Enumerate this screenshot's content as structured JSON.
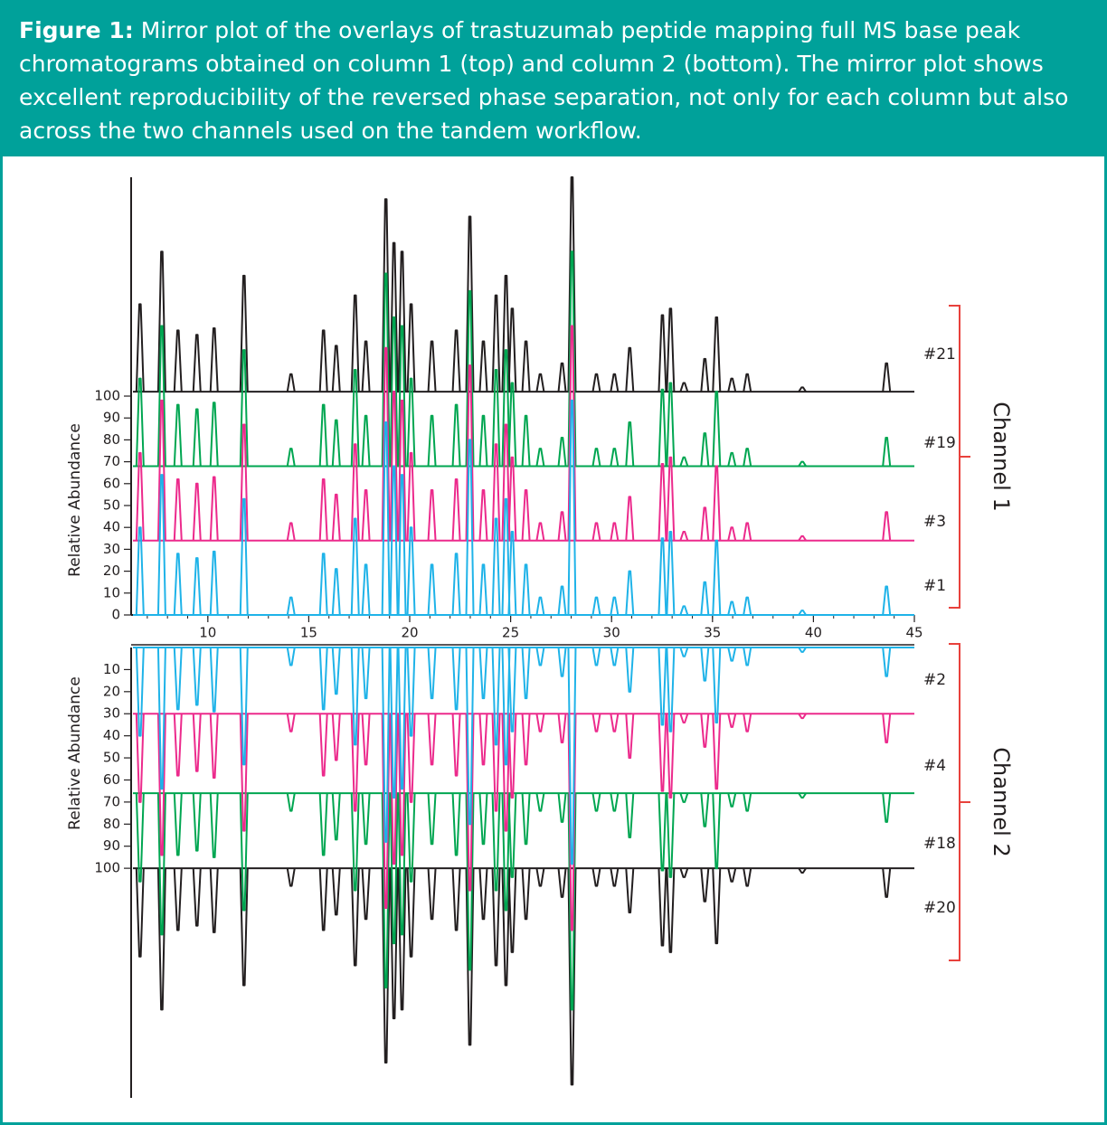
{
  "caption": {
    "label": "Figure 1:",
    "text": "Mirror plot of the overlays of trastuzumab peptide mapping full MS base peak chromatograms obtained on column 1 (top) and column 2 (bottom). The mirror plot shows excellent reproducibility of the reversed phase separation, not only for each column but also across the two channels used on the tandem workflow."
  },
  "chart_data": [
    {
      "type": "mirror-chromatogram",
      "ylabel": "Relative Abundance",
      "annotation": "Channel 1",
      "xlim": [
        6.2,
        45
      ],
      "xticks": [
        10,
        15,
        20,
        25,
        30,
        35,
        40,
        45
      ],
      "ylim": [
        0,
        200
      ],
      "yticks": [
        0,
        10,
        20,
        30,
        40,
        50,
        60,
        70,
        80,
        90,
        100
      ],
      "y_inverted": false,
      "x": [
        6.64,
        7.72,
        8.52,
        9.46,
        10.31,
        11.79,
        14.12,
        15.73,
        16.36,
        17.3,
        17.83,
        18.82,
        19.22,
        19.62,
        20.07,
        21.1,
        22.31,
        22.98,
        23.65,
        24.28,
        24.77,
        25.08,
        25.76,
        26.47,
        27.55,
        28.04,
        29.25,
        30.14,
        30.9,
        32.52,
        32.92,
        33.59,
        34.62,
        35.2,
        35.96,
        36.72,
        39.45,
        43.62
      ],
      "series": [
        {
          "name": "#21",
          "color": "#231f20",
          "baseline": 102,
          "values": [
            142,
            166,
            130,
            128,
            131,
            155,
            110,
            130,
            123,
            146,
            125,
            190,
            170,
            166,
            142,
            125,
            130,
            182,
            125,
            146,
            155,
            140,
            125,
            110,
            115,
            200,
            110,
            110,
            122,
            137,
            140,
            106,
            117,
            136,
            108,
            110,
            104,
            115
          ]
        },
        {
          "name": "#19",
          "color": "#00a651",
          "baseline": 68,
          "values": [
            108,
            132,
            96,
            94,
            97,
            121,
            76,
            96,
            89,
            112,
            91,
            156,
            136,
            132,
            108,
            91,
            96,
            148,
            91,
            112,
            121,
            106,
            91,
            76,
            81,
            166,
            76,
            76,
            88,
            103,
            106,
            72,
            83,
            102,
            74,
            76,
            70,
            81
          ]
        },
        {
          "name": "#3",
          "color": "#ec2a8c",
          "baseline": 34,
          "values": [
            74,
            98,
            62,
            60,
            63,
            87,
            42,
            62,
            55,
            78,
            57,
            122,
            102,
            98,
            74,
            57,
            62,
            114,
            57,
            78,
            87,
            72,
            57,
            42,
            47,
            132,
            42,
            42,
            54,
            69,
            72,
            38,
            49,
            68,
            40,
            42,
            36,
            47
          ]
        },
        {
          "name": "#1",
          "color": "#1fb3e8",
          "baseline": 0,
          "values": [
            40,
            64,
            28,
            26,
            29,
            53,
            8,
            28,
            21,
            44,
            23,
            88,
            68,
            64,
            40,
            23,
            28,
            80,
            23,
            44,
            53,
            38,
            23,
            8,
            13,
            98,
            8,
            8,
            20,
            35,
            38,
            4,
            15,
            34,
            6,
            8,
            2,
            13
          ]
        }
      ]
    },
    {
      "type": "mirror-chromatogram",
      "ylabel": "Relative Abundance",
      "annotation": "Channel 2",
      "xlim": [
        6.2,
        45
      ],
      "ylim": [
        0,
        204
      ],
      "yticks": [
        10,
        20,
        30,
        40,
        50,
        60,
        70,
        80,
        90,
        100
      ],
      "y_inverted": true,
      "x": [
        6.64,
        7.72,
        8.52,
        9.46,
        10.31,
        11.79,
        14.12,
        15.73,
        16.36,
        17.3,
        17.83,
        18.82,
        19.22,
        19.62,
        20.07,
        21.1,
        22.31,
        22.98,
        23.65,
        24.28,
        24.77,
        25.08,
        25.76,
        26.47,
        27.55,
        28.04,
        29.25,
        30.14,
        30.9,
        32.52,
        32.92,
        33.59,
        34.62,
        35.2,
        35.96,
        36.72,
        39.45,
        43.62
      ],
      "series": [
        {
          "name": "#20",
          "color": "#231f20",
          "baseline": 100,
          "values": [
            140,
            164,
            128,
            126,
            129,
            153,
            108,
            128,
            121,
            144,
            123,
            188,
            168,
            164,
            140,
            123,
            128,
            180,
            123,
            144,
            153,
            138,
            123,
            108,
            113,
            198,
            108,
            108,
            120,
            135,
            138,
            104,
            115,
            134,
            106,
            108,
            102,
            113
          ]
        },
        {
          "name": "#18",
          "color": "#00a651",
          "baseline": 66,
          "values": [
            106,
            130,
            94,
            92,
            95,
            119,
            74,
            94,
            87,
            110,
            89,
            154,
            134,
            130,
            106,
            89,
            94,
            146,
            89,
            110,
            119,
            104,
            89,
            74,
            79,
            164,
            74,
            74,
            86,
            101,
            104,
            70,
            81,
            100,
            72,
            74,
            68,
            79
          ]
        },
        {
          "name": "#4",
          "color": "#ec2a8c",
          "baseline": 30,
          "values": [
            70,
            94,
            58,
            56,
            59,
            83,
            38,
            58,
            51,
            74,
            53,
            118,
            98,
            94,
            70,
            53,
            58,
            110,
            53,
            74,
            83,
            68,
            53,
            38,
            43,
            128,
            38,
            38,
            50,
            65,
            68,
            34,
            45,
            64,
            36,
            38,
            32,
            43
          ]
        },
        {
          "name": "#2",
          "color": "#1fb3e8",
          "baseline": 0,
          "values": [
            40,
            64,
            28,
            26,
            29,
            53,
            8,
            28,
            21,
            44,
            23,
            88,
            68,
            64,
            40,
            23,
            28,
            80,
            23,
            44,
            53,
            38,
            23,
            8,
            13,
            98,
            8,
            8,
            20,
            35,
            38,
            4,
            15,
            34,
            6,
            8,
            2,
            13
          ]
        }
      ]
    }
  ]
}
